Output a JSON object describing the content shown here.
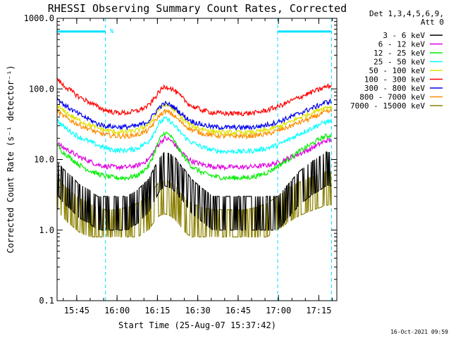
{
  "chart_data": {
    "type": "line",
    "title": "RHESSI Observing Summary Count Rates, Corrected",
    "xlabel": "Start Time (25-Aug-07 15:37:42)",
    "ylabel": "Corrected Count Rate (s⁻¹ detector⁻¹)",
    "y_scale": "log",
    "ylim": [
      0.1,
      1000
    ],
    "xlim_minutes": [
      0,
      104
    ],
    "x_ticks": [
      {
        "label": "15:45",
        "minute": 7.3
      },
      {
        "label": "16:00",
        "minute": 22.3
      },
      {
        "label": "16:15",
        "minute": 37.3
      },
      {
        "label": "16:30",
        "minute": 52.3
      },
      {
        "label": "16:45",
        "minute": 67.3
      },
      {
        "label": "17:00",
        "minute": 82.3
      },
      {
        "label": "17:15",
        "minute": 97.3
      }
    ],
    "y_ticks": [
      {
        "label": "0.1",
        "value": 0.1
      },
      {
        "label": "1.0",
        "value": 1
      },
      {
        "label": "10.0",
        "value": 10
      },
      {
        "label": "100.0",
        "value": 100
      },
      {
        "label": "1000.0",
        "value": 1000
      }
    ],
    "legend_header": [
      "Det 1,3,4,5,6,9,",
      "Att 0"
    ],
    "legend_placement": "right",
    "grid": false,
    "night_label": "N",
    "night_intervals_minutes": [
      [
        0,
        18
      ],
      [
        82,
        102
      ]
    ],
    "night_marker_y": 650,
    "x": [
      0,
      2,
      5,
      8,
      12,
      15,
      18,
      22,
      26,
      30,
      34,
      36,
      38,
      40,
      42,
      44,
      46,
      48,
      50,
      54,
      58,
      62,
      66,
      70,
      74,
      78,
      82,
      86,
      90,
      94,
      98,
      100,
      102
    ],
    "series": [
      {
        "name": "3 - 6 keV",
        "color": "#000000",
        "values": [
          6.5,
          5,
          4,
          3,
          2.5,
          2,
          2,
          2,
          2,
          2.5,
          3.5,
          5,
          7,
          8.5,
          8,
          7,
          5.5,
          4.5,
          3.5,
          2.6,
          2,
          2,
          2,
          2,
          2,
          2,
          2,
          3,
          4.5,
          6,
          7.5,
          8.5,
          8.5
        ]
      },
      {
        "name": "6 - 12 keV",
        "color": "#e000e0",
        "values": [
          17,
          15,
          13,
          11,
          9.5,
          8.5,
          8,
          7.8,
          7.8,
          8.2,
          10,
          13,
          17,
          20,
          19,
          16,
          13,
          11,
          9.5,
          8.5,
          8,
          7.8,
          7.8,
          7.8,
          8,
          8.3,
          9,
          10.5,
          12,
          14,
          17,
          18.5,
          19
        ]
      },
      {
        "name": "12 - 25 keV",
        "color": "#00ee00",
        "values": [
          16,
          13,
          10.5,
          8.5,
          7,
          6.3,
          5.8,
          5.5,
          5.5,
          6,
          8,
          12,
          19,
          24,
          22,
          17,
          12.5,
          10,
          8,
          6.5,
          5.8,
          5.5,
          5.5,
          5.5,
          5.8,
          6.5,
          8,
          10,
          13,
          16,
          20,
          21.5,
          22
        ]
      },
      {
        "name": "25 - 50 keV",
        "color": "#00ffff",
        "values": [
          36,
          30,
          25,
          21,
          18,
          16,
          14.5,
          13.5,
          13.5,
          14.5,
          18,
          24,
          33,
          38,
          35,
          29,
          24,
          20,
          17.5,
          15,
          13.5,
          13,
          13,
          13,
          13.5,
          14.5,
          16,
          19,
          23,
          27,
          32,
          34,
          35
        ]
      },
      {
        "name": "50 - 100 keV",
        "color": "#e0e000",
        "values": [
          58,
          50,
          42,
          36,
          31,
          28,
          26,
          24.5,
          24.5,
          26,
          31,
          40,
          52,
          60,
          57,
          48,
          40,
          34,
          30,
          27,
          25,
          24,
          24,
          24,
          24.5,
          26,
          29,
          33,
          39,
          45,
          52,
          55,
          56
        ]
      },
      {
        "name": "100 - 300 keV",
        "color": "#ff0000",
        "values": [
          140,
          115,
          95,
          78,
          65,
          56,
          50,
          46,
          46,
          49,
          58,
          72,
          92,
          108,
          105,
          92,
          78,
          66,
          57,
          50,
          46,
          45,
          45,
          45,
          46,
          50,
          56,
          65,
          76,
          88,
          100,
          108,
          110
        ]
      },
      {
        "name": "300 - 800 keV",
        "color": "#0000ee",
        "values": [
          75,
          62,
          52,
          44,
          37,
          32,
          30,
          29,
          29,
          30,
          35,
          44,
          55,
          62,
          60,
          53,
          45,
          39,
          35,
          31,
          29,
          28.5,
          28.5,
          28.5,
          29,
          31,
          34,
          39,
          45,
          52,
          60,
          65,
          67
        ]
      },
      {
        "name": "800 - 7000 keV",
        "color": "#ff8c00",
        "values": [
          48,
          42,
          36,
          31,
          27,
          24,
          22.5,
          21.5,
          21.5,
          22.5,
          26,
          33,
          42,
          48,
          46,
          40,
          34,
          29.5,
          26.5,
          23.5,
          22,
          21.5,
          21.5,
          21.5,
          22,
          23,
          25.5,
          29,
          33.5,
          38,
          44,
          47,
          48
        ]
      },
      {
        "name": "7000 - 15000 keV",
        "color": "#8b8000",
        "values": [
          4,
          3,
          2.4,
          1.9,
          1.6,
          1.4,
          1.3,
          1.3,
          1.4,
          1.6,
          2,
          2.6,
          3.2,
          3.4,
          3.2,
          2.8,
          2.2,
          1.8,
          1.6,
          1.4,
          1.3,
          1.3,
          1.3,
          1.3,
          1.4,
          1.6,
          2,
          2.6,
          3.2,
          3.7,
          4.2,
          4.5,
          4.5
        ]
      }
    ]
  },
  "timestamp": "16-Oct-2021 09:59"
}
